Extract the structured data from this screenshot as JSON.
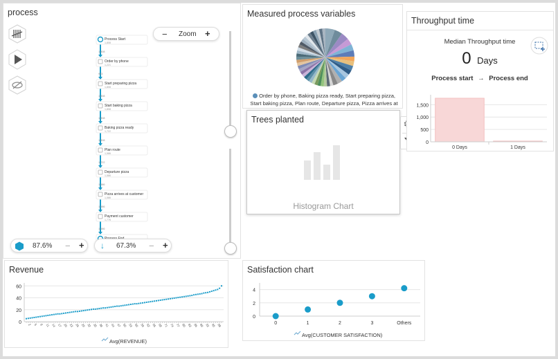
{
  "colors": {
    "accent": "#1a9cc9",
    "bar": "#f8d7d7",
    "grid": "#e6e6e6"
  },
  "process": {
    "title": "process",
    "zoom": {
      "label": "Zoom",
      "minus": "−",
      "plus": "+"
    },
    "icons": {
      "tally": "tally-marks-icon",
      "play": "play-icon",
      "hide": "eye-hidden-icon"
    },
    "nodes": [
      {
        "label": "Process Start",
        "count": "1,808"
      },
      {
        "label": "Order by phone",
        "count": "1,221"
      },
      {
        "label": "Start preparing pizza",
        "count": "1,808"
      },
      {
        "label": "Start baking pizza",
        "count": "1,808"
      },
      {
        "label": "Baking pizza ready",
        "count": "1,722"
      },
      {
        "label": "Plan route",
        "count": "1,586"
      },
      {
        "label": "Departure pizza",
        "count": "1,586"
      },
      {
        "label": "Pizza arrives at customer",
        "count": "1,586"
      },
      {
        "label": "Payment customer",
        "count": "1,776"
      },
      {
        "label": "Process End",
        "count": "1,808"
      }
    ],
    "edges": [
      "1,808",
      "963",
      "1,808",
      "1,808",
      "1,808",
      "1,722",
      "1,586",
      "1,586",
      "1,586"
    ],
    "activities": {
      "value": "87.6%",
      "minus": "−",
      "plus": "+"
    },
    "paths": {
      "value": "67.3%",
      "minus": "−",
      "plus": "+"
    }
  },
  "measured": {
    "title": "Measured process variables",
    "legend": "Order by phone, Baking pizza ready, Start preparing pizza, Start baking pizza, Plan route, Departure pizza, Pizza arrives at"
  },
  "trees": {
    "title": "Trees planted",
    "placeholder": "Histogram Chart",
    "icons": {
      "settings": "gear-icon",
      "filter": "filter-icon"
    }
  },
  "throughput": {
    "title": "Throughput time",
    "median_label": "Median Throughput time",
    "value": "0",
    "unit": "Days",
    "from": "Process start",
    "arrow": "→",
    "to": "Process end"
  },
  "revenue": {
    "title": "Revenue"
  },
  "satisfaction": {
    "title": "Satisfaction chart"
  },
  "chart_data": [
    {
      "type": "bar",
      "categories": [
        "0 Days",
        "1 Days"
      ],
      "values": [
        1760,
        30
      ],
      "ylim": [
        0,
        1900
      ],
      "yticks": [
        "0",
        "500",
        "1,000",
        "1,500"
      ],
      "grid": true
    },
    {
      "type": "line",
      "legend": "Avg(REVENUE)",
      "ylim": [
        0,
        65
      ],
      "yticks": [
        "0",
        "20",
        "40",
        "60"
      ],
      "x": [
        1,
        2,
        3,
        4,
        5,
        6,
        7,
        8,
        9,
        10,
        11,
        12,
        13,
        14,
        15,
        16,
        17,
        18,
        19,
        20,
        21,
        22,
        23,
        24,
        25,
        26,
        27,
        28,
        29,
        30,
        31,
        32,
        33,
        34,
        35,
        36,
        37,
        38,
        39,
        40,
        41,
        42,
        43,
        44,
        45,
        46,
        47,
        48,
        49,
        50,
        51,
        52,
        53,
        54,
        55,
        56,
        57,
        58,
        59,
        60,
        61,
        62,
        63,
        64,
        65,
        66,
        67,
        68,
        69,
        70,
        71,
        72,
        73,
        74,
        75,
        76,
        77,
        78,
        79,
        80,
        81,
        82,
        83,
        84,
        85,
        86,
        87,
        88,
        89,
        90,
        91,
        92,
        93,
        94,
        95,
        96,
        97,
        98,
        99,
        100
      ],
      "y": [
        5,
        5.5,
        6,
        6.5,
        7,
        7.5,
        8,
        8.5,
        9,
        9.5,
        10,
        10.5,
        11,
        11.5,
        12,
        12.5,
        13,
        13,
        13.5,
        14,
        14.5,
        15,
        15.5,
        16,
        16.5,
        17,
        17,
        17.5,
        18,
        18.5,
        19,
        19.5,
        20,
        20.5,
        21,
        21,
        21.5,
        22,
        22.5,
        23,
        23,
        23.5,
        24,
        24.5,
        25,
        25.5,
        26,
        26,
        26.5,
        27,
        27.5,
        28,
        28.5,
        29,
        29.5,
        30,
        30,
        30.5,
        31,
        31.5,
        32,
        32.5,
        33,
        33.5,
        34,
        34.5,
        35,
        35.5,
        36,
        36.5,
        37,
        37.5,
        38,
        38.5,
        39,
        39.5,
        40,
        40.5,
        41,
        41.5,
        42,
        42.5,
        43,
        43.5,
        44,
        45,
        45.5,
        46,
        46.5,
        47,
        48,
        48.5,
        49,
        50,
        51,
        52,
        53,
        54,
        56,
        60
      ]
    },
    {
      "type": "scatter",
      "legend": "Avg(CUSTOMER SATISFACTION)",
      "categories": [
        "0",
        "1",
        "2",
        "3",
        "Others"
      ],
      "values": [
        0,
        1,
        2,
        3,
        4.2
      ],
      "ylim": [
        0,
        5
      ],
      "yticks": [
        "0",
        "2",
        "4"
      ]
    },
    {
      "type": "pie",
      "values": [
        6,
        5,
        5,
        4,
        4,
        4,
        3,
        3,
        3,
        3,
        3,
        3,
        3,
        3,
        2,
        2,
        2,
        2,
        2,
        2,
        2,
        2,
        2,
        2,
        2,
        2,
        2,
        2,
        2,
        2,
        2,
        2,
        2,
        2,
        2,
        2,
        2,
        2,
        2,
        2,
        2,
        2,
        2,
        2,
        2
      ],
      "colors": [
        "#8fa9b8",
        "#6f8c9c",
        "#9b8ac4",
        "#c69ad6",
        "#7fb3d5",
        "#5d7cb8",
        "#f2a65a",
        "#e8c07d",
        "#4e7fa8",
        "#2f5c87",
        "#a7c6e0",
        "#6aa5d4",
        "#b0b0b0",
        "#888",
        "#d6d6d6",
        "#5c6a75",
        "#b5c9a0",
        "#93c47d",
        "#4d8f5b",
        "#7a9a5e",
        "#c6d9b5",
        "#96b8c9",
        "#5b8fa8",
        "#2d6b8a",
        "#c9b3d9",
        "#8c74a8",
        "#a5a5c5",
        "#7f8bb5",
        "#e3c5a0",
        "#d19e6b",
        "#6c8e99",
        "#4b6b78",
        "#a0b8c8",
        "#d0dce6",
        "#7d7d7d",
        "#505a66",
        "#9fb0bf",
        "#b8c8d4",
        "#e0e6eb",
        "#6e7f8e",
        "#3e5466",
        "#8ba2b3",
        "#c4ccd3",
        "#5f7486",
        "#a9b6c2"
      ]
    }
  ]
}
